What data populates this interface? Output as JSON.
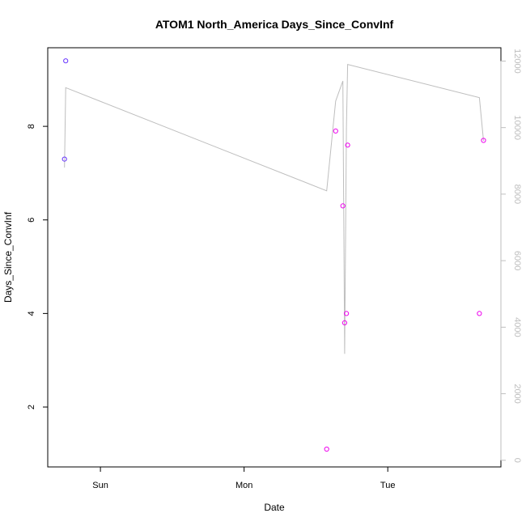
{
  "chart_data": {
    "type": "scatter",
    "title": "ATOM1 North_America Days_Since_ConvInf",
    "xlabel": "Date",
    "ylabel": "Days_Since_ConvInf",
    "x_tick_labels": [
      "Sun",
      "Mon",
      "Tue"
    ],
    "x_ticks": [
      0,
      24,
      48
    ],
    "xlim": [
      -8.8,
      66.9
    ],
    "ylim": [
      0.72,
      9.68
    ],
    "y_ticks": [
      2,
      4,
      6,
      8
    ],
    "grid": false,
    "legend": "none",
    "points": [
      {
        "x": -6.0,
        "y": 7.3,
        "color": "#6633ff"
      },
      {
        "x": -5.8,
        "y": 9.4,
        "color": "#6633ff"
      },
      {
        "x": 37.8,
        "y": 1.1,
        "color": "#ee00ee"
      },
      {
        "x": 39.3,
        "y": 7.9,
        "color": "#ee00ee"
      },
      {
        "x": 40.5,
        "y": 6.3,
        "color": "#ee00ee"
      },
      {
        "x": 40.8,
        "y": 3.8,
        "color": "#ee00ee"
      },
      {
        "x": 41.1,
        "y": 4.0,
        "color": "#ee00ee"
      },
      {
        "x": 41.3,
        "y": 7.6,
        "color": "#ee00ee"
      },
      {
        "x": 63.3,
        "y": 4.0,
        "color": "#ee00ee"
      },
      {
        "x": 64.0,
        "y": 7.7,
        "color": "#ee00ee"
      }
    ],
    "secondary_axis": {
      "ylim": [
        -200,
        12400
      ],
      "ticks": [
        0,
        2000,
        4000,
        6000,
        8000,
        10000,
        12000
      ],
      "color": "#bebebe",
      "line": {
        "x": [
          -6.0,
          -5.8,
          37.8,
          39.3,
          40.5,
          40.8,
          41.1,
          41.3,
          63.3,
          64.0
        ],
        "y": [
          8800,
          11200,
          8100,
          10800,
          11400,
          3200,
          10000,
          11900,
          10900,
          9600
        ]
      }
    }
  }
}
